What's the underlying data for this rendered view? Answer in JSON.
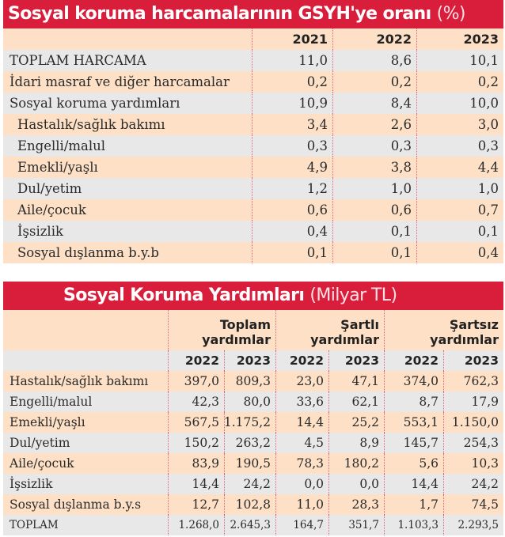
{
  "table1": {
    "title": "Sosyal koruma harcamalarının GSYH'ye oranı",
    "unit": "(%)",
    "years": [
      "2021",
      "2022",
      "2023"
    ],
    "rows": [
      {
        "label": "TOPLAM HARCAMA",
        "values": [
          "11,0",
          "8,6",
          "10,1"
        ]
      },
      {
        "label": "İdari masraf ve diğer harcamalar",
        "values": [
          "0,2",
          "0,2",
          "0,2"
        ]
      },
      {
        "label": "Sosyal koruma yardımları",
        "values": [
          "10,9",
          "8,4",
          "10,0"
        ]
      },
      {
        "label": "Hastalık/sağlık bakımı",
        "values": [
          "3,4",
          "2,6",
          "3,0"
        ]
      },
      {
        "label": "Engelli/malul",
        "values": [
          "0,3",
          "0,3",
          "0,3"
        ]
      },
      {
        "label": "Emekli/yaşlı",
        "values": [
          "4,9",
          "3,8",
          "4,4"
        ]
      },
      {
        "label": "Dul/yetim",
        "values": [
          "1,2",
          "1,0",
          "1,0"
        ]
      },
      {
        "label": "Aile/çocuk",
        "values": [
          "0,6",
          "0,6",
          "0,7"
        ]
      },
      {
        "label": "İşsizlik",
        "values": [
          "0,4",
          "0,1",
          "0,1"
        ]
      },
      {
        "label": "Sosyal dışlanma b.y.b",
        "values": [
          "0,1",
          "0,1",
          "0,4"
        ]
      }
    ]
  },
  "table2": {
    "title": "Sosyal Koruma Yardımları",
    "unit": "(Milyar TL)",
    "groups": [
      [
        "Toplam",
        "yardımlar"
      ],
      [
        "Şartlı",
        "yardımlar"
      ],
      [
        "Şartsız",
        "yardımlar"
      ]
    ],
    "years": [
      "2022",
      "2023",
      "2022",
      "2023",
      "2022",
      "2023"
    ],
    "rows": [
      {
        "label": "Hastalık/sağlık bakımı",
        "values": [
          "397,0",
          "809,3",
          "23,0",
          "47,1",
          "374,0",
          "762,3"
        ]
      },
      {
        "label": "Engelli/malul",
        "values": [
          "42,3",
          "80,0",
          "33,6",
          "62,1",
          "8,7",
          "17,9"
        ]
      },
      {
        "label": "Emekli/yaşlı",
        "values": [
          "567,5",
          "1.175,2",
          "14,4",
          "25,2",
          "553,1",
          "1.150,0"
        ]
      },
      {
        "label": "Dul/yetim",
        "values": [
          "150,2",
          "263,2",
          "4,5",
          "8,9",
          "145,7",
          "254,3"
        ]
      },
      {
        "label": "Aile/çocuk",
        "values": [
          "83,9",
          "190,5",
          "78,3",
          "180,2",
          "5,6",
          "10,3"
        ]
      },
      {
        "label": "İşsizlik",
        "values": [
          "14,4",
          "24,2",
          "0,0",
          "0,0",
          "14,4",
          "24,2"
        ]
      },
      {
        "label": "Sosyal dışlanma b.y.s",
        "values": [
          "12,7",
          "102,8",
          "11,0",
          "28,3",
          "1,7",
          "74,5"
        ]
      },
      {
        "label": "TOPLAM",
        "values": [
          "1.268,0",
          "2.645,3",
          "164,7",
          "351,7",
          "1.103,3",
          "2.293,5"
        ]
      }
    ]
  },
  "colors": {
    "header_red": "#d81e3b",
    "row_peach": "#fde0c5",
    "row_gray": "#e8e8e8"
  }
}
